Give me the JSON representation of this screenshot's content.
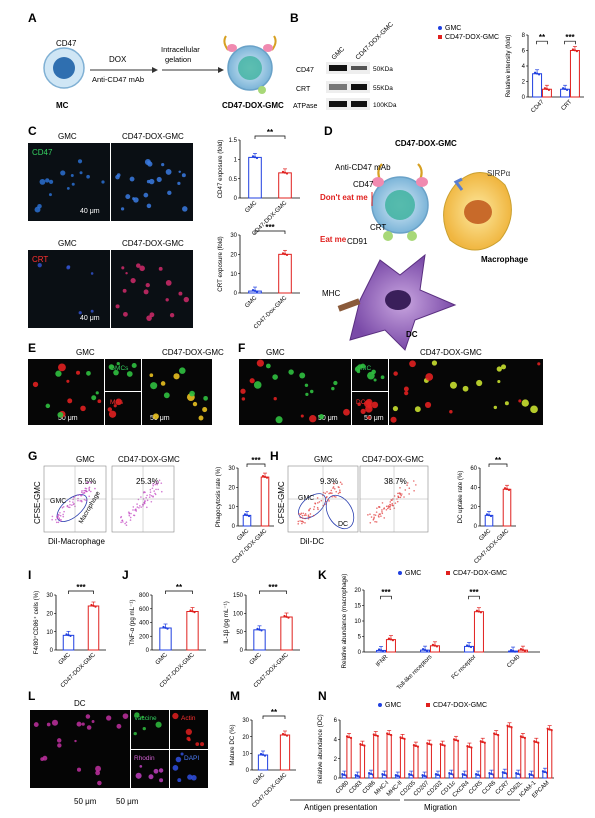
{
  "colors": {
    "gmc": "#1f3fe0",
    "cd47dox": "#e0201e",
    "grid": "#000000"
  },
  "panels": [
    "A",
    "B",
    "C",
    "D",
    "E",
    "F",
    "G",
    "H",
    "I",
    "J",
    "K",
    "L",
    "M",
    "N"
  ],
  "panel_a": {
    "cd47": "CD47",
    "dox": "DOX",
    "mab": "Anti-CD47 mAb",
    "gel1": "Intracellular",
    "gel2": "gelation",
    "mc": "MC",
    "product": "CD47-DOX-GMC"
  },
  "panel_b": {
    "lanes": [
      "GMC",
      "CD47-DOX-GMC"
    ],
    "rows": [
      "CD47",
      "CRT",
      "ATPase"
    ],
    "kda": [
      "50KDa",
      "55KDa",
      "100KDa"
    ]
  },
  "panel_c": {
    "titles": [
      "GMC",
      "CD47-DOX-GMC"
    ],
    "label_top": "CD47",
    "label_bottom": "CRT",
    "scale": "40 μm"
  },
  "panel_d": {
    "title": "CD47-DOX-GMC",
    "mab": "Anti-CD47 mAb",
    "dont": "Don't eat me",
    "eat": "Eat me",
    "cd47": "CD47",
    "crt": "CRT",
    "cd91": "CD91",
    "sirpa": "SIRPα",
    "macrophage": "Macrophage",
    "mhc": "MHC",
    "dc": "DC"
  },
  "panel_e": {
    "titles": [
      "GMC",
      "CD47-DOX-GMC"
    ],
    "inset1": "GMCs",
    "inset2": "MAs",
    "scale": "50 μm"
  },
  "panel_f": {
    "titles": [
      "GMC",
      "CD47-DOX-GMC"
    ],
    "inset1": "GMC",
    "inset2": "DC",
    "scale": "50 μm"
  },
  "panel_g": {
    "titles": [
      "GMC",
      "CD47-DOX-GMC"
    ],
    "pct": [
      "5.5%",
      "25.3%"
    ],
    "ylabel": "CFSE-GMC",
    "xlabel": "DiI-Macrophage",
    "gate1": "GMC",
    "gate2": "Macrophage"
  },
  "panel_h": {
    "titles": [
      "GMC",
      "CD47-DOX-GMC"
    ],
    "pct": [
      "9.3%",
      "38.7%"
    ],
    "ylabel": "CFSE-GMC",
    "xlabel": "DiI-DC",
    "gate1": "GMC",
    "gate2": "DC"
  },
  "panel_l": {
    "title": "DC",
    "insets": [
      "Vaccine",
      "Actin",
      "Rhodin",
      "DAPI"
    ],
    "scale": "50 μm"
  },
  "panel_n_groups": [
    "Antigen presentation",
    "Migration"
  ],
  "sig": {
    "two": "**",
    "three": "***"
  },
  "chart_data": [
    {
      "id": "B",
      "type": "bar",
      "categories": [
        "CD47",
        "CRT"
      ],
      "ylabel": "Relative intensity (fold)",
      "ylim": [
        0,
        8
      ],
      "yticks": [
        0,
        2,
        4,
        6,
        8
      ],
      "legend": [
        "GMC",
        "CD47-DOX-GMC"
      ],
      "series": [
        {
          "name": "GMC",
          "values": [
            3.0,
            1.0
          ]
        },
        {
          "name": "CD47-DOX-GMC",
          "values": [
            1.0,
            6.0
          ]
        }
      ]
    },
    {
      "id": "C1",
      "type": "bar",
      "categories": [
        "GMC",
        "CD47-DOX-GMC"
      ],
      "ylabel": "CD47 exposure (fold)",
      "ylim": [
        0,
        1.5
      ],
      "yticks": [
        0.0,
        0.5,
        1.0,
        1.5
      ],
      "values": [
        1.05,
        0.65
      ]
    },
    {
      "id": "C2",
      "type": "bar",
      "categories": [
        "GMC",
        "CD47-Dox-GMC"
      ],
      "ylabel": "CRT exposure (fold)",
      "ylim": [
        0,
        30
      ],
      "yticks": [
        0,
        10,
        20,
        30
      ],
      "values": [
        1.0,
        20.0
      ]
    },
    {
      "id": "G",
      "type": "bar",
      "categories": [
        "GMC",
        "CD47-DOX-GMC"
      ],
      "ylabel": "Phagocytosis rate (%)",
      "ylim": [
        0,
        30
      ],
      "yticks": [
        0,
        10,
        20,
        30
      ],
      "values": [
        5.5,
        25.3
      ]
    },
    {
      "id": "H",
      "type": "bar",
      "categories": [
        "GMC",
        "CD47-DOX-GMC"
      ],
      "ylabel": "DC uptake rate (%)",
      "ylim": [
        0,
        60
      ],
      "yticks": [
        0,
        20,
        40,
        60
      ],
      "values": [
        11.0,
        38.0
      ]
    },
    {
      "id": "I",
      "type": "bar",
      "categories": [
        "GMC",
        "CD47-DOX-GMC"
      ],
      "ylabel": "F4/80⁺CD86⁺ cells (%)",
      "ylim": [
        0,
        30
      ],
      "yticks": [
        0,
        10,
        20,
        30
      ],
      "values": [
        8.0,
        24.0
      ]
    },
    {
      "id": "J1",
      "type": "bar",
      "categories": [
        "GMC",
        "CD47-DOX-GMC"
      ],
      "ylabel": "TNF-α (pg mL⁻¹)",
      "ylim": [
        0,
        800
      ],
      "yticks": [
        0,
        200,
        400,
        600,
        800
      ],
      "values": [
        320,
        560
      ]
    },
    {
      "id": "J2",
      "type": "bar",
      "categories": [
        "GMC",
        "CD47-DOX-GMC"
      ],
      "ylabel": "IL-1β (pg mL⁻¹)",
      "ylim": [
        0,
        150
      ],
      "yticks": [
        0,
        50,
        100,
        150
      ],
      "values": [
        55,
        90
      ]
    },
    {
      "id": "K",
      "type": "bar",
      "categories": [
        "IFNR",
        "Toll-like receptors",
        "FC receptor",
        "CD40"
      ],
      "ylabel": "Relative abundance (macrophage)",
      "ylim": [
        0,
        20
      ],
      "yticks": [
        0,
        5,
        10,
        15,
        20
      ],
      "legend": [
        "GMC",
        "CD47-DOX-GMC"
      ],
      "series": [
        {
          "name": "GMC",
          "values": [
            0.5,
            0.6,
            1.8,
            0.3
          ]
        },
        {
          "name": "CD47-DOX-GMC",
          "values": [
            4.0,
            2.0,
            13.0,
            0.6
          ]
        }
      ]
    },
    {
      "id": "M",
      "type": "bar",
      "categories": [
        "GMC",
        "CD47-DOX-GMC"
      ],
      "ylabel": "Mature DC (%)",
      "ylim": [
        0,
        30
      ],
      "yticks": [
        0,
        10,
        20,
        30
      ],
      "values": [
        9.0,
        21.0
      ]
    },
    {
      "id": "N",
      "type": "bar",
      "categories": [
        "CD80",
        "CD83",
        "CD86",
        "MHC-I",
        "MHC-II",
        "CD205",
        "CD207",
        "CD202",
        "CD11c",
        "CXCR4",
        "CCR5",
        "CCR6",
        "CCR7",
        "CD62L",
        "ICAM-1",
        "EPCAM"
      ],
      "ylabel": "Relative abundance (DC)",
      "ylim": [
        0,
        6
      ],
      "yticks": [
        0,
        2,
        4,
        6
      ],
      "legend": [
        "GMC",
        "CD47-DOX-GMC"
      ],
      "series": [
        {
          "name": "GMC",
          "values": [
            0.3,
            0.2,
            0.4,
            0.3,
            0.2,
            0.3,
            0.2,
            0.3,
            0.4,
            0.3,
            0.3,
            0.4,
            0.5,
            0.4,
            0.3,
            0.6
          ]
        },
        {
          "name": "CD47-DOX-GMC",
          "values": [
            4.2,
            3.4,
            4.4,
            4.5,
            4.1,
            3.3,
            3.5,
            3.4,
            3.9,
            3.2,
            3.7,
            4.5,
            5.3,
            4.2,
            3.7,
            5.0
          ]
        }
      ]
    }
  ]
}
